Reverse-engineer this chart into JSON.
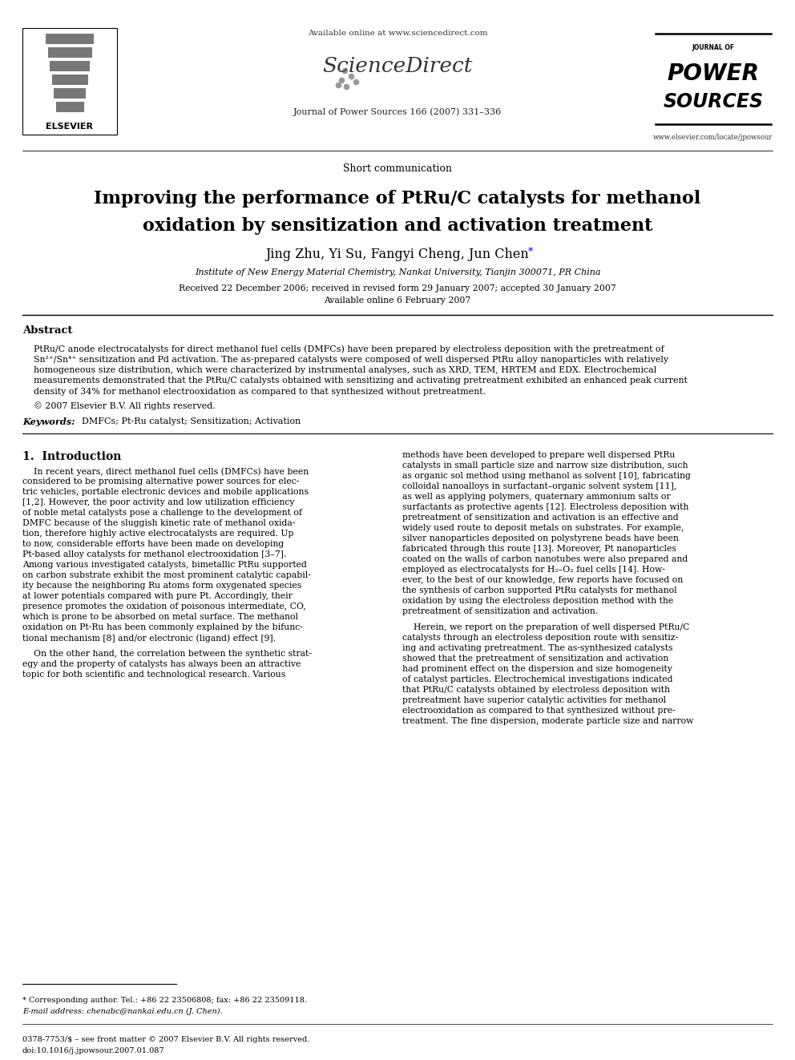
{
  "bg_color": "#ffffff",
  "header_available_online": "Available online at www.sciencedirect.com",
  "journal_info": "Journal of Power Sources 166 (2007) 331–336",
  "elsevier_text": "ELSEVIER",
  "journal_website": "www.elsevier.com/locate/jpowsour",
  "section_label": "Short communication",
  "title_line1": "Improving the performance of PtRu/C catalysts for methanol",
  "title_line2": "oxidation by sensitization and activation treatment",
  "authors_no_star": "Jing Zhu, Yi Su, Fangyi Cheng, Jun Chen",
  "affiliation": "Institute of New Energy Material Chemistry, Nankai University, Tianjin 300071, PR China",
  "received": "Received 22 December 2006; received in revised form 29 January 2007; accepted 30 January 2007",
  "available_online": "Available online 6 February 2007",
  "abstract_title": "Abstract",
  "keywords_label": "Keywords:",
  "keywords": "DMFCs; Pt-Ru catalyst; Sensitization; Activation",
  "intro_title": "1.  Introduction",
  "footnote_star": "* Corresponding author. Tel.: +86 22 23506808; fax: +86 22 23509118.",
  "footnote_email": "E-mail address: chenabc@nankai.edu.cn (J. Chen).",
  "footer_issn": "0378-7753/$ – see front matter © 2007 Elsevier B.V. All rights reserved.",
  "footer_doi": "doi:10.1016/j.jpowsour.2007.01.087",
  "abstract_lines": [
    "PtRu/C anode electrocatalysts for direct methanol fuel cells (DMFCs) have been prepared by electroless deposition with the pretreatment of",
    "Sn²⁺/Sn⁴⁺ sensitization and Pd activation. The as-prepared catalysts were composed of well dispersed PtRu alloy nanoparticles with relatively",
    "homogeneous size distribution, which were characterized by instrumental analyses, such as XRD, TEM, HRTEM and EDX. Electrochemical",
    "measurements demonstrated that the PtRu/C catalysts obtained with sensitizing and activating pretreatment exhibited an enhanced peak current",
    "density of 34% for methanol electrooxidation as compared to that synthesized without pretreatment.",
    "© 2007 Elsevier B.V. All rights reserved."
  ],
  "col1_lines": [
    "    In recent years, direct methanol fuel cells (DMFCs) have been",
    "considered to be promising alternative power sources for elec-",
    "tric vehicles, portable electronic devices and mobile applications",
    "[1,2]. However, the poor activity and low utilization efficiency",
    "of noble metal catalysts pose a challenge to the development of",
    "DMFC because of the sluggish kinetic rate of methanol oxida-",
    "tion, therefore highly active electrocatalysts are required. Up",
    "to now, considerable efforts have been made on developing",
    "Pt-based alloy catalysts for methanol electrooxidation [3–7].",
    "Among various investigated catalysts, bimetallic PtRu supported",
    "on carbon substrate exhibit the most prominent catalytic capabil-",
    "ity because the neighboring Ru atoms form oxygenated species",
    "at lower potentials compared with pure Pt. Accordingly, their",
    "presence promotes the oxidation of poisonous intermediate, CO,",
    "which is prone to be absorbed on metal surface. The methanol",
    "oxidation on Pt-Ru has been commonly explained by the bifunc-",
    "tional mechanism [8] and/or electronic (ligand) effect [9].",
    "",
    "    On the other hand, the correlation between the synthetic strat-",
    "egy and the property of catalysts has always been an attractive",
    "topic for both scientific and technological research. Various"
  ],
  "col2_lines": [
    "methods have been developed to prepare well dispersed PtRu",
    "catalysts in small particle size and narrow size distribution, such",
    "as organic sol method using methanol as solvent [10], fabricating",
    "colloidal nanoalloys in surfactant–organic solvent system [11],",
    "as well as applying polymers, quaternary ammonium salts or",
    "surfactants as protective agents [12]. Electroless deposition with",
    "pretreatment of sensitization and activation is an effective and",
    "widely used route to deposit metals on substrates. For example,",
    "silver nanoparticles deposited on polystyrene beads have been",
    "fabricated through this route [13]. Moreover, Pt nanoparticles",
    "coated on the walls of carbon nanotubes were also prepared and",
    "employed as electrocatalysts for H₂–O₂ fuel cells [14]. How-",
    "ever, to the best of our knowledge, few reports have focused on",
    "the synthesis of carbon supported PtRu catalysts for methanol",
    "oxidation by using the electroless deposition method with the",
    "pretreatment of sensitization and activation.",
    "",
    "    Herein, we report on the preparation of well dispersed PtRu/C",
    "catalysts through an electroless deposition route with sensitiz-",
    "ing and activating pretreatment. The as-synthesized catalysts",
    "showed that the pretreatment of sensitization and activation",
    "had prominent effect on the dispersion and size homogeneity",
    "of catalyst particles. Electrochemical investigations indicated",
    "that PtRu/C catalysts obtained by electroless deposition with",
    "pretreatment have superior catalytic activities for methanol",
    "electrooxidation as compared to that synthesized without pre-",
    "treatment. The fine dispersion, moderate particle size and narrow"
  ]
}
